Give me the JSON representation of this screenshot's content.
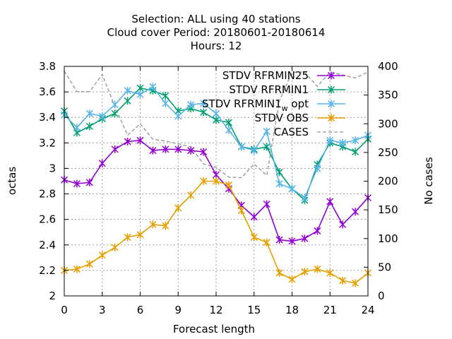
{
  "chart_data": {
    "type": "line",
    "title_lines": [
      "Selection: ALL using    40 stations",
      "Cloud cover   Period: 20180601-20180614",
      "Hours:  12"
    ],
    "xlabel": "Forecast length",
    "ylabel": "octas",
    "y2label": "No cases",
    "xlim": [
      0,
      24
    ],
    "ylim": [
      2,
      3.8
    ],
    "y2lim": [
      0,
      400
    ],
    "x_ticks": [
      "0",
      "3",
      "6",
      "9",
      "12",
      "15",
      "18",
      "21",
      "24"
    ],
    "y_ticks": [
      "2",
      "2.2",
      "2.4",
      "2.6",
      "2.8",
      "3",
      "3.2",
      "3.4",
      "3.6",
      "3.8"
    ],
    "y2_ticks": [
      "0",
      "50",
      "100",
      "150",
      "200",
      "250",
      "300",
      "350",
      "400"
    ],
    "grid": true,
    "legend_position": "top-right",
    "x": [
      0,
      1,
      2,
      3,
      4,
      5,
      6,
      7,
      8,
      9,
      10,
      11,
      12,
      13,
      14,
      15,
      16,
      17,
      18,
      19,
      20,
      21,
      22,
      23,
      24
    ],
    "series": [
      {
        "name": "STDV RFRMIN25",
        "color": "#9400d3",
        "marker": "x",
        "axis": "left",
        "values": [
          2.91,
          2.88,
          2.89,
          3.04,
          3.15,
          3.21,
          3.22,
          3.14,
          3.15,
          3.15,
          3.14,
          3.13,
          2.95,
          2.84,
          2.71,
          2.62,
          2.72,
          2.44,
          2.43,
          2.45,
          2.51,
          2.74,
          2.56,
          2.66,
          2.77
        ]
      },
      {
        "name": "STDV RFRMIN1",
        "color": "#009e73",
        "marker": "x",
        "axis": "left",
        "values": [
          3.45,
          3.28,
          3.33,
          3.39,
          3.43,
          3.53,
          3.63,
          3.61,
          3.57,
          3.45,
          3.47,
          3.44,
          3.38,
          3.36,
          3.17,
          3.15,
          3.17,
          2.97,
          2.84,
          2.75,
          3.03,
          3.2,
          3.17,
          3.13,
          3.23
        ]
      },
      {
        "name": "STDV RFRMIN1_w_opt",
        "legend_text": "STDV RFRMIN1",
        "legend_subscript": "w",
        "legend_tail": "opt",
        "color": "#56b4e9",
        "marker": "x",
        "axis": "left",
        "values": [
          3.42,
          3.32,
          3.43,
          3.41,
          3.5,
          3.61,
          3.58,
          3.64,
          3.51,
          3.41,
          3.5,
          3.51,
          3.43,
          3.3,
          3.17,
          3.14,
          3.29,
          2.88,
          2.84,
          2.77,
          3.0,
          3.22,
          3.2,
          3.22,
          3.26
        ]
      },
      {
        "name": "STDV OBS",
        "color": "#e69f00",
        "marker": "x",
        "axis": "left",
        "values": [
          2.2,
          2.21,
          2.25,
          2.32,
          2.38,
          2.46,
          2.48,
          2.56,
          2.55,
          2.69,
          2.79,
          2.9,
          2.9,
          2.87,
          2.67,
          2.46,
          2.42,
          2.18,
          2.13,
          2.19,
          2.21,
          2.18,
          2.12,
          2.1,
          2.18
        ]
      },
      {
        "name": "CASES",
        "color": "#a0a0a0",
        "marker": "none",
        "dashed": true,
        "axis": "right",
        "values": [
          392,
          356,
          356,
          386,
          330,
          280,
          300,
          273,
          270,
          265,
          260,
          230,
          224,
          207,
          206,
          230,
          210,
          340,
          390,
          390,
          365,
          390,
          385,
          380,
          390
        ]
      }
    ]
  }
}
